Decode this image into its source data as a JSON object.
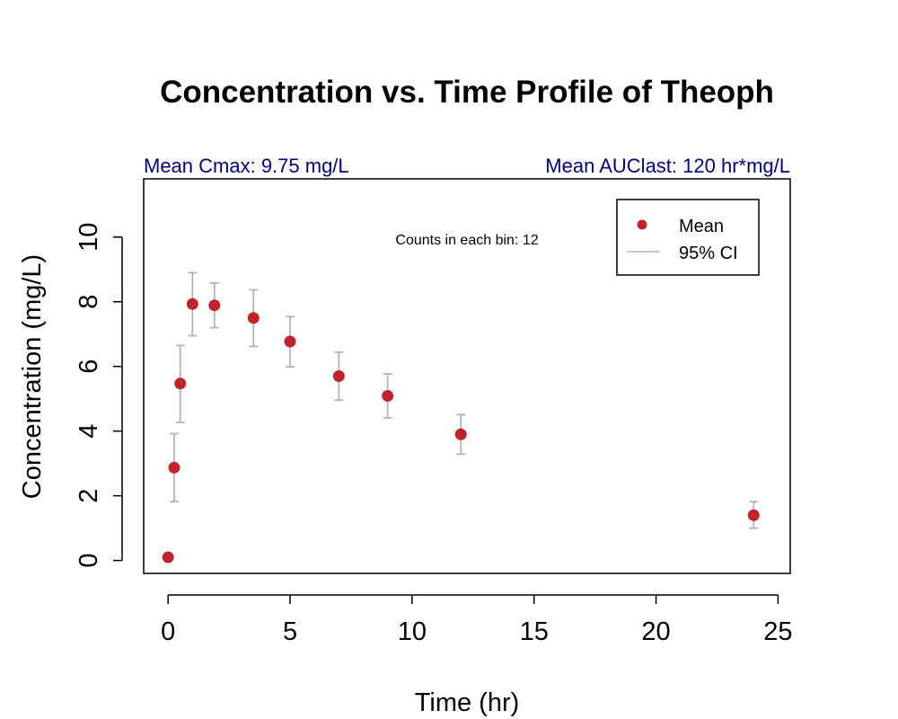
{
  "chart_data": {
    "type": "scatter",
    "title": "Concentration vs. Time Profile of Theoph",
    "xlabel": "Time (hr)",
    "ylabel": "Concentration (mg/L)",
    "xlim": [
      -1,
      25.5
    ],
    "ylim": [
      -0.4,
      11.8
    ],
    "xticks": [
      0,
      5,
      10,
      15,
      20,
      25
    ],
    "yticks": [
      0,
      2,
      4,
      6,
      8,
      10
    ],
    "x_tick_labels": [
      "0",
      "5",
      "10",
      "15",
      "20",
      "25"
    ],
    "y_tick_labels": [
      "0",
      "2",
      "4",
      "6",
      "8",
      "10"
    ],
    "grid": false,
    "legend_position": "top-right",
    "annotations": {
      "cmax": "Mean Cmax: 9.75 mg/L",
      "auc": "Mean AUClast: 120 hr*mg/L",
      "counts": "Counts in each bin: 12"
    },
    "series": [
      {
        "name": "Mean",
        "color": "#c0232c",
        "x": [
          0,
          0.25,
          0.5,
          1,
          1.9,
          3.5,
          5,
          7,
          9,
          12,
          24
        ],
        "y": [
          0.1,
          2.87,
          5.47,
          7.93,
          7.89,
          7.5,
          6.77,
          5.7,
          5.09,
          3.9,
          1.4
        ]
      },
      {
        "name": "95% CI",
        "color": "#b4b4b4",
        "lower": [
          0.0,
          1.82,
          4.27,
          6.95,
          7.2,
          6.62,
          5.99,
          4.96,
          4.41,
          3.29,
          1.0
        ],
        "upper": [
          0.2,
          3.92,
          6.65,
          8.9,
          8.58,
          8.37,
          7.54,
          6.44,
          5.77,
          4.51,
          1.82
        ]
      }
    ]
  }
}
